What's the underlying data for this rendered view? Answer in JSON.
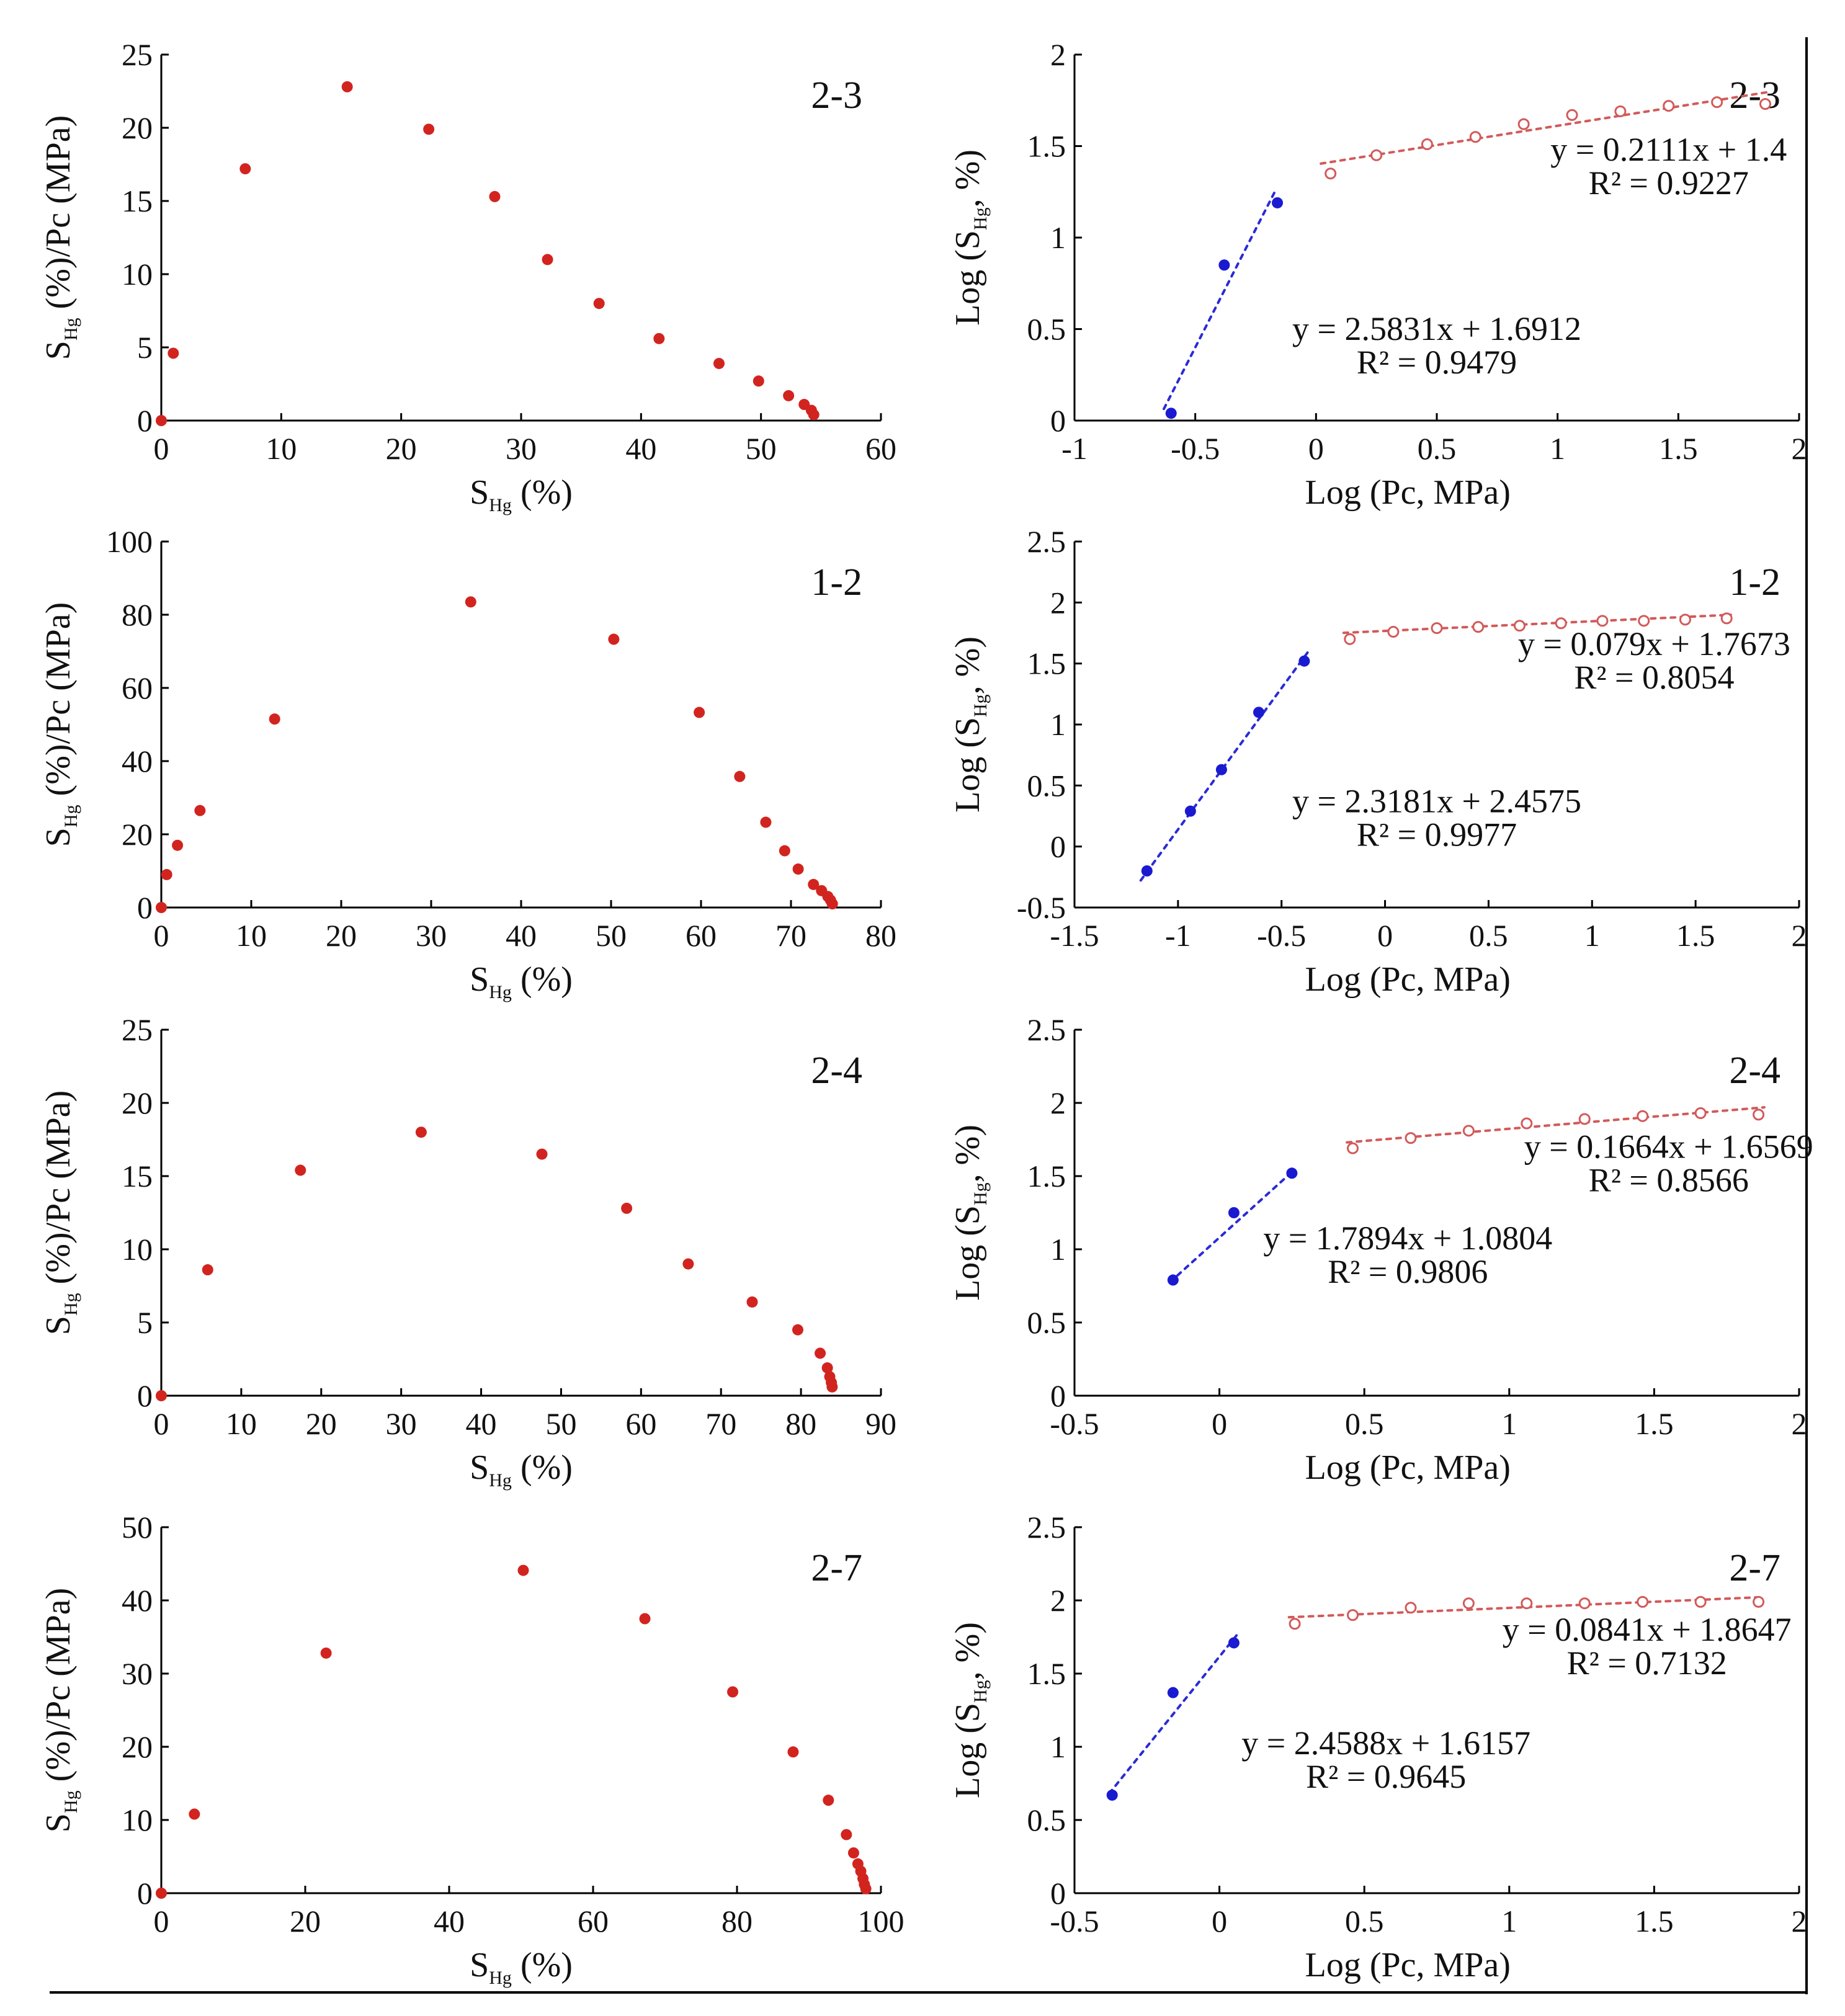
{
  "figure": {
    "marker_colors": {
      "red_filled": "#d2241f",
      "blue_filled": "#1a1ad0",
      "red_open": "#d25a5a",
      "blue_line": "#2b2bd6",
      "red_line": "#d25a5a"
    }
  },
  "chart_data": [
    {
      "type": "scatter",
      "tag": "2-3",
      "xlabel": "S_Hg (%)",
      "ylabel": "S_Hg (%)/Pc (MPa)",
      "xlim": [
        0,
        60
      ],
      "ylim": [
        0,
        25
      ],
      "xticks": [
        0,
        10,
        20,
        30,
        40,
        50,
        60
      ],
      "yticks": [
        0,
        5,
        10,
        15,
        20,
        25
      ],
      "series": [
        {
          "style": "red_filled",
          "points": [
            [
              0,
              0
            ],
            [
              1,
              4.6
            ],
            [
              7,
              17.2
            ],
            [
              15.5,
              22.8
            ],
            [
              22.3,
              19.9
            ],
            [
              27.8,
              15.3
            ],
            [
              32.2,
              11
            ],
            [
              36.5,
              8
            ],
            [
              41.5,
              5.6
            ],
            [
              46.5,
              3.9
            ],
            [
              49.8,
              2.7
            ],
            [
              52.3,
              1.7
            ],
            [
              53.6,
              1.1
            ],
            [
              54.2,
              0.7
            ],
            [
              54.4,
              0.4
            ]
          ]
        }
      ]
    },
    {
      "type": "scatter",
      "tag": "2-3",
      "xlabel": "Log (Pc, MPa)",
      "ylabel": "Log (S_Hg, %)",
      "xlim": [
        -1,
        2
      ],
      "ylim": [
        0,
        2
      ],
      "xticks": [
        -1,
        -0.5,
        0,
        0.5,
        1,
        1.5,
        2
      ],
      "yticks": [
        0,
        0.5,
        1,
        1.5,
        2
      ],
      "series": [
        {
          "style": "blue_filled",
          "points": [
            [
              -0.6,
              0.04
            ],
            [
              -0.38,
              0.85
            ],
            [
              -0.16,
              1.19
            ]
          ],
          "fit": {
            "slope": 2.5831,
            "intercept": 1.6912,
            "x_range": [
              -0.63,
              -0.17
            ]
          }
        },
        {
          "style": "red_open",
          "points": [
            [
              0.06,
              1.35
            ],
            [
              0.25,
              1.45
            ],
            [
              0.46,
              1.51
            ],
            [
              0.66,
              1.55
            ],
            [
              0.86,
              1.62
            ],
            [
              1.06,
              1.67
            ],
            [
              1.26,
              1.69
            ],
            [
              1.46,
              1.72
            ],
            [
              1.66,
              1.74
            ],
            [
              1.86,
              1.73
            ]
          ],
          "fit": {
            "slope": 0.2111,
            "intercept": 1.4,
            "x_range": [
              0.02,
              1.88
            ]
          }
        }
      ],
      "annotations": [
        {
          "key": "eq_blue",
          "text": "y = 2.5831x + 1.6912",
          "r2": "R² = 0.9479"
        },
        {
          "key": "eq_red",
          "text": "y = 0.2111x + 1.4",
          "r2": "R² = 0.9227"
        }
      ]
    },
    {
      "type": "scatter",
      "tag": "1-2",
      "xlabel": "S_Hg (%)",
      "ylabel": "S_Hg (%)/Pc (MPa)",
      "xlim": [
        0,
        80
      ],
      "ylim": [
        0,
        100
      ],
      "xticks": [
        0,
        10,
        20,
        30,
        40,
        50,
        60,
        70,
        80
      ],
      "yticks": [
        0,
        20,
        40,
        60,
        80,
        100
      ],
      "series": [
        {
          "style": "red_filled",
          "points": [
            [
              0,
              0
            ],
            [
              0.6,
              9
            ],
            [
              1.8,
              17
            ],
            [
              4.3,
              26.5
            ],
            [
              12.6,
              51.5
            ],
            [
              34.4,
              83.5
            ],
            [
              50.3,
              73.3
            ],
            [
              59.8,
              53.3
            ],
            [
              64.3,
              35.8
            ],
            [
              67.2,
              23.3
            ],
            [
              69.3,
              15.5
            ],
            [
              70.8,
              10.5
            ],
            [
              72.5,
              6.3
            ],
            [
              73.4,
              4.6
            ],
            [
              74.1,
              3
            ],
            [
              74.4,
              2
            ],
            [
              74.6,
              1
            ]
          ]
        }
      ]
    },
    {
      "type": "scatter",
      "tag": "1-2",
      "xlabel": "Log (Pc, MPa)",
      "ylabel": "Log (S_Hg, %)",
      "xlim": [
        -1.5,
        2
      ],
      "ylim": [
        -0.5,
        2.5
      ],
      "xticks": [
        -1.5,
        -1,
        -0.5,
        0,
        0.5,
        1,
        1.5,
        2
      ],
      "yticks": [
        -0.5,
        0,
        0.5,
        1,
        1.5,
        2,
        2.5
      ],
      "series": [
        {
          "style": "blue_filled",
          "points": [
            [
              -1.15,
              -0.2
            ],
            [
              -0.94,
              0.29
            ],
            [
              -0.79,
              0.63
            ],
            [
              -0.61,
              1.1
            ],
            [
              -0.39,
              1.52
            ]
          ],
          "fit": {
            "slope": 2.3181,
            "intercept": 2.4575,
            "x_range": [
              -1.18,
              -0.37
            ]
          }
        },
        {
          "style": "red_open",
          "points": [
            [
              -0.17,
              1.7
            ],
            [
              0.04,
              1.76
            ],
            [
              0.25,
              1.79
            ],
            [
              0.45,
              1.8
            ],
            [
              0.65,
              1.81
            ],
            [
              0.85,
              1.83
            ],
            [
              1.05,
              1.85
            ],
            [
              1.25,
              1.85
            ],
            [
              1.45,
              1.86
            ],
            [
              1.65,
              1.87
            ]
          ],
          "fit": {
            "slope": 0.079,
            "intercept": 1.7673,
            "x_range": [
              -0.2,
              1.67
            ]
          }
        }
      ],
      "annotations": [
        {
          "key": "eq_blue",
          "text": "y = 2.3181x + 2.4575",
          "r2": "R² = 0.9977"
        },
        {
          "key": "eq_red",
          "text": "y = 0.079x + 1.7673",
          "r2": "R² = 0.8054"
        }
      ]
    },
    {
      "type": "scatter",
      "tag": "2-4",
      "xlabel": "S_Hg (%)",
      "ylabel": "S_Hg (%)/Pc (MPa)",
      "xlim": [
        0,
        90
      ],
      "ylim": [
        0,
        25
      ],
      "xticks": [
        0,
        10,
        20,
        30,
        40,
        50,
        60,
        70,
        80,
        90
      ],
      "yticks": [
        0,
        5,
        10,
        15,
        20,
        25
      ],
      "series": [
        {
          "style": "red_filled",
          "points": [
            [
              0,
              0
            ],
            [
              5.8,
              8.6
            ],
            [
              17.4,
              15.4
            ],
            [
              32.5,
              18
            ],
            [
              47.6,
              16.5
            ],
            [
              58.2,
              12.8
            ],
            [
              65.9,
              9
            ],
            [
              73.9,
              6.4
            ],
            [
              79.6,
              4.5
            ],
            [
              82.4,
              2.9
            ],
            [
              83.3,
              1.9
            ],
            [
              83.6,
              1.3
            ],
            [
              83.8,
              0.9
            ],
            [
              83.9,
              0.6
            ]
          ]
        }
      ]
    },
    {
      "type": "scatter",
      "tag": "2-4",
      "xlabel": "Log (Pc, MPa)",
      "ylabel": "Log (S_Hg, %)",
      "xlim": [
        -0.5,
        2
      ],
      "ylim": [
        0,
        2.5
      ],
      "xticks": [
        -0.5,
        0,
        0.5,
        1,
        1.5,
        2
      ],
      "yticks": [
        0,
        0.5,
        1,
        1.5,
        2,
        2.5
      ],
      "series": [
        {
          "style": "blue_filled",
          "points": [
            [
              -0.16,
              0.79
            ],
            [
              0.05,
              1.25
            ],
            [
              0.25,
              1.52
            ]
          ],
          "fit": {
            "slope": 1.7894,
            "intercept": 1.0804,
            "x_range": [
              -0.17,
              0.26
            ]
          }
        },
        {
          "style": "red_open",
          "points": [
            [
              0.46,
              1.69
            ],
            [
              0.66,
              1.76
            ],
            [
              0.86,
              1.81
            ],
            [
              1.06,
              1.86
            ],
            [
              1.26,
              1.89
            ],
            [
              1.46,
              1.91
            ],
            [
              1.66,
              1.93
            ],
            [
              1.86,
              1.92
            ]
          ],
          "fit": {
            "slope": 0.1664,
            "intercept": 1.6569,
            "x_range": [
              0.44,
              1.88
            ]
          }
        }
      ],
      "annotations": [
        {
          "key": "eq_blue",
          "text": "y = 1.7894x + 1.0804",
          "r2": "R² = 0.9806"
        },
        {
          "key": "eq_red",
          "text": "y = 0.1664x + 1.6569",
          "r2": "R² = 0.8566"
        }
      ]
    },
    {
      "type": "scatter",
      "tag": "2-7",
      "xlabel": "S_Hg (%)",
      "ylabel": "S_Hg (%)/Pc (MPa)",
      "xlim": [
        0,
        100
      ],
      "ylim": [
        0,
        50
      ],
      "xticks": [
        0,
        20,
        40,
        60,
        80,
        100
      ],
      "yticks": [
        0,
        10,
        20,
        30,
        40,
        50
      ],
      "series": [
        {
          "style": "red_filled",
          "points": [
            [
              0,
              0
            ],
            [
              4.6,
              10.8
            ],
            [
              22.9,
              32.8
            ],
            [
              50.3,
              44.1
            ],
            [
              67.2,
              37.5
            ],
            [
              79.4,
              27.5
            ],
            [
              87.8,
              19.3
            ],
            [
              92.7,
              12.7
            ],
            [
              95.2,
              8
            ],
            [
              96.2,
              5.5
            ],
            [
              96.8,
              4
            ],
            [
              97.2,
              3
            ],
            [
              97.5,
              2
            ],
            [
              97.7,
              1.2
            ],
            [
              97.9,
              0.6
            ]
          ]
        }
      ]
    },
    {
      "type": "scatter",
      "tag": "2-7",
      "xlabel": "Log (Pc, MPa)",
      "ylabel": "Log (S_Hg, %)",
      "xlim": [
        -0.5,
        2
      ],
      "ylim": [
        0,
        2.5
      ],
      "xticks": [
        -0.5,
        0,
        0.5,
        1,
        1.5,
        2
      ],
      "yticks": [
        0,
        0.5,
        1,
        1.5,
        2,
        2.5
      ],
      "series": [
        {
          "style": "blue_filled",
          "points": [
            [
              -0.37,
              0.67
            ],
            [
              -0.16,
              1.37
            ],
            [
              0.05,
              1.71
            ]
          ],
          "fit": {
            "slope": 2.4588,
            "intercept": 1.6157,
            "x_range": [
              -0.38,
              0.06
            ]
          }
        },
        {
          "style": "red_open",
          "points": [
            [
              0.26,
              1.84
            ],
            [
              0.46,
              1.9
            ],
            [
              0.66,
              1.95
            ],
            [
              0.86,
              1.98
            ],
            [
              1.06,
              1.98
            ],
            [
              1.26,
              1.98
            ],
            [
              1.46,
              1.99
            ],
            [
              1.66,
              1.99
            ],
            [
              1.86,
              1.99
            ]
          ],
          "fit": {
            "slope": 0.0841,
            "intercept": 1.8647,
            "x_range": [
              0.24,
              1.88
            ]
          }
        }
      ],
      "annotations": [
        {
          "key": "eq_blue",
          "text": "y = 2.4588x + 1.6157",
          "r2": "R² = 0.9645"
        },
        {
          "key": "eq_red",
          "text": "y = 0.0841x + 1.8647",
          "r2": "R² = 0.7132"
        }
      ]
    }
  ]
}
